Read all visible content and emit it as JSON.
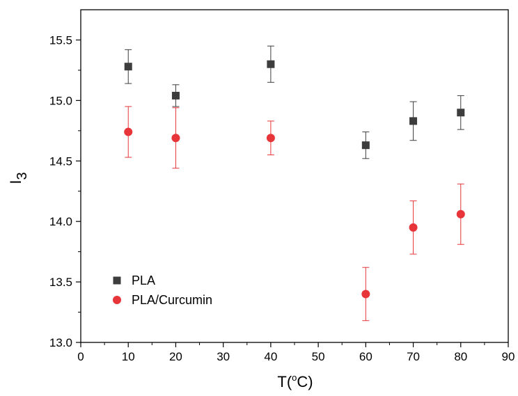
{
  "chart_data": {
    "type": "scatter",
    "xlabel": "T(",
    "xlabel_sup": "o",
    "xlabel_unit": "C)",
    "ylabel": "I",
    "ylabel_sub": "3",
    "xlim": [
      0,
      90
    ],
    "ylim": [
      13.0,
      15.75
    ],
    "xticks": [
      "0",
      "10",
      "20",
      "30",
      "40",
      "50",
      "60",
      "70",
      "80",
      "90"
    ],
    "yticks": [
      "13.0",
      "13.5",
      "14.0",
      "14.5",
      "15.0",
      "15.5"
    ],
    "grid": false,
    "legend_position": "bottom-left",
    "series": [
      {
        "name": "PLA",
        "marker": "square",
        "color": "#3d3d3d",
        "points": [
          {
            "x": 10,
            "y": 15.28,
            "err_low": 15.14,
            "err_high": 15.42
          },
          {
            "x": 20,
            "y": 15.04,
            "err_low": 14.95,
            "err_high": 15.13
          },
          {
            "x": 40,
            "y": 15.3,
            "err_low": 15.15,
            "err_high": 15.45
          },
          {
            "x": 60,
            "y": 14.63,
            "err_low": 14.52,
            "err_high": 14.74
          },
          {
            "x": 70,
            "y": 14.83,
            "err_low": 14.67,
            "err_high": 14.99
          },
          {
            "x": 80,
            "y": 14.9,
            "err_low": 14.76,
            "err_high": 15.04
          }
        ]
      },
      {
        "name": "PLA/Curcumin",
        "marker": "circle",
        "color": "#e8353a",
        "points": [
          {
            "x": 10,
            "y": 14.74,
            "err_low": 14.53,
            "err_high": 14.95
          },
          {
            "x": 20,
            "y": 14.69,
            "err_low": 14.44,
            "err_high": 14.94
          },
          {
            "x": 40,
            "y": 14.69,
            "err_low": 14.55,
            "err_high": 14.83
          },
          {
            "x": 60,
            "y": 13.4,
            "err_low": 13.18,
            "err_high": 13.62
          },
          {
            "x": 70,
            "y": 13.95,
            "err_low": 13.73,
            "err_high": 14.17
          },
          {
            "x": 80,
            "y": 14.06,
            "err_low": 13.81,
            "err_high": 14.31
          }
        ]
      }
    ]
  }
}
